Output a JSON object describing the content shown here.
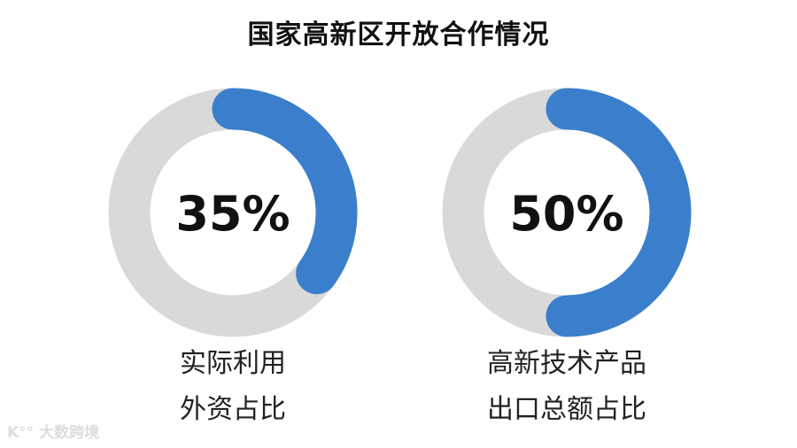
{
  "chart_data": {
    "type": "donut",
    "title": "国家高新区开放合作情况",
    "series": [
      {
        "value": 35,
        "value_label": "35%",
        "label_lines": [
          "实际利用",
          "外资占比"
        ]
      },
      {
        "value": 50,
        "value_label": "50%",
        "label_lines": [
          "高新技术产品",
          "出口总额占比"
        ]
      }
    ],
    "max": 100,
    "colors": {
      "filled": "#3b7fcc",
      "track": "#d9d9d9"
    }
  },
  "watermark": "大数跨境"
}
